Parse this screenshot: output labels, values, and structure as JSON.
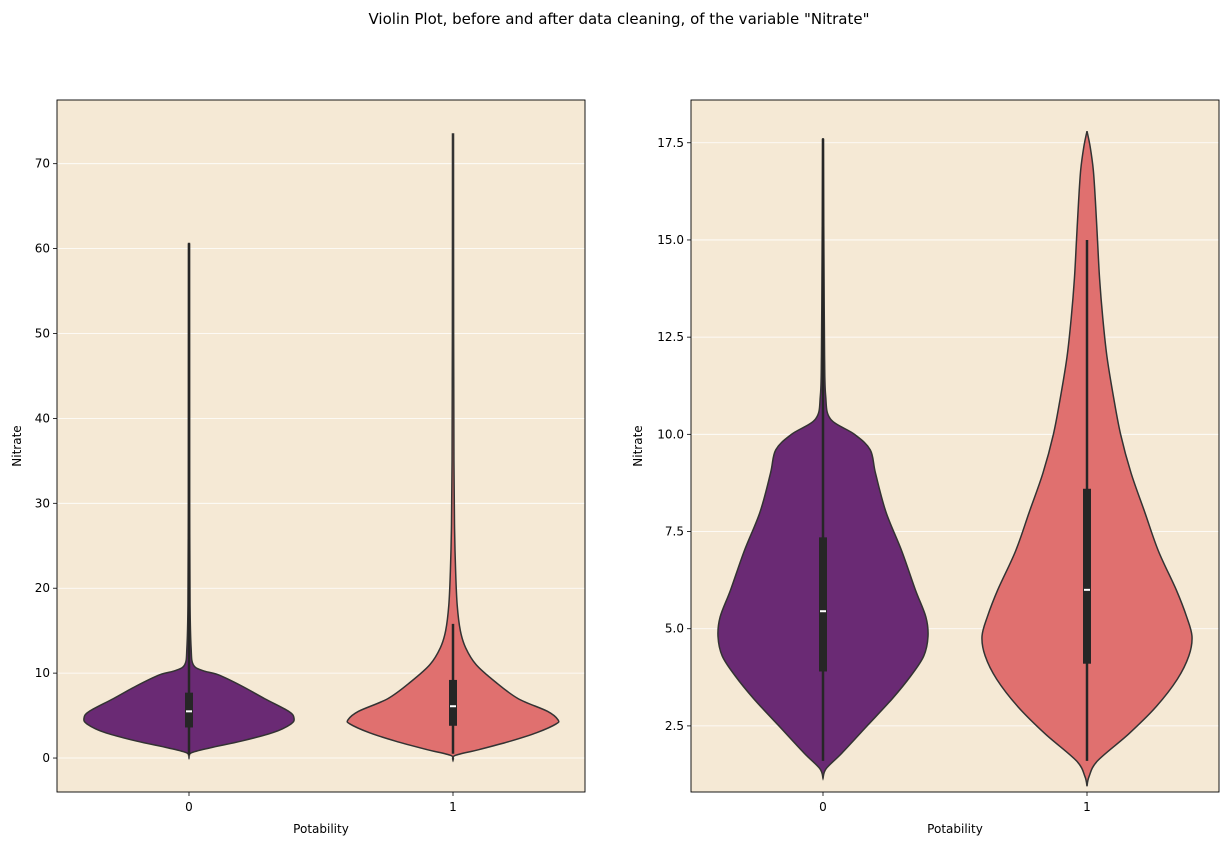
{
  "figure": {
    "suptitle": "Violin Plot, before and after data cleaning, of the variable \"Nitrate\"",
    "panel_background": "#f5e9d5",
    "grid_color": "#ffffff",
    "violin_outline": "#333333",
    "box_color": "#262626",
    "median_color": "#ffffff",
    "palette": [
      "#6a2a74",
      "#e0706f"
    ]
  },
  "chart_data": [
    {
      "type": "violin",
      "xlabel": "Potability",
      "ylabel": "Nitrate",
      "categories": [
        "0",
        "1"
      ],
      "ylim": [
        -4,
        77.5
      ],
      "yticks": [
        0,
        10,
        20,
        30,
        40,
        50,
        60,
        70
      ],
      "ytick_labels": [
        "0",
        "10",
        "20",
        "30",
        "40",
        "50",
        "60",
        "70"
      ],
      "grid": "horizontal",
      "violins": [
        {
          "category": "0",
          "color": "#6a2a74",
          "whisker_min": 0.3,
          "q1": 3.6,
          "median": 5.5,
          "q3": 7.7,
          "whisker_max": 60.6,
          "profile": [
            [
              0,
              0
            ],
            [
              0.6,
              0.02
            ],
            [
              1.2,
              0.2
            ],
            [
              2,
              0.5
            ],
            [
              3,
              0.8
            ],
            [
              4,
              0.97
            ],
            [
              4.7,
              1
            ],
            [
              5.5,
              0.95
            ],
            [
              7,
              0.72
            ],
            [
              8.5,
              0.5
            ],
            [
              9.8,
              0.28
            ],
            [
              10.3,
              0.13
            ],
            [
              11,
              0.04
            ],
            [
              13,
              0.02
            ],
            [
              18,
              0.01
            ],
            [
              30,
              0.006
            ],
            [
              45,
              0.005
            ],
            [
              60.6,
              0.004
            ]
          ]
        },
        {
          "category": "1",
          "color": "#e0706f",
          "whisker_min": 0.5,
          "q1": 3.8,
          "median": 6.1,
          "q3": 9.2,
          "whisker_max": 15.8,
          "profile": [
            [
              -0.3,
              0
            ],
            [
              0.3,
              0.02
            ],
            [
              1,
              0.25
            ],
            [
              2,
              0.55
            ],
            [
              3,
              0.8
            ],
            [
              4,
              0.98
            ],
            [
              4.5,
              1
            ],
            [
              5.5,
              0.9
            ],
            [
              7,
              0.62
            ],
            [
              9,
              0.4
            ],
            [
              11,
              0.22
            ],
            [
              13,
              0.12
            ],
            [
              15,
              0.07
            ],
            [
              18,
              0.04
            ],
            [
              22,
              0.025
            ],
            [
              27,
              0.015
            ],
            [
              35,
              0.009
            ],
            [
              50,
              0.006
            ],
            [
              73.5,
              0.005
            ]
          ]
        }
      ]
    },
    {
      "type": "violin",
      "xlabel": "Potability",
      "ylabel": "Nitrate",
      "categories": [
        "0",
        "1"
      ],
      "ylim": [
        0.8,
        18.6
      ],
      "yticks": [
        2.5,
        5.0,
        7.5,
        10.0,
        12.5,
        15.0,
        17.5
      ],
      "ytick_labels": [
        "2.5",
        "5.0",
        "7.5",
        "10.0",
        "12.5",
        "15.0",
        "17.5"
      ],
      "grid": "horizontal",
      "violins": [
        {
          "category": "0",
          "color": "#6a2a74",
          "whisker_min": 1.6,
          "q1": 3.9,
          "median": 5.45,
          "q3": 7.35,
          "whisker_max": 17.6,
          "profile": [
            [
              1.15,
              0
            ],
            [
              1.4,
              0.03
            ],
            [
              1.8,
              0.18
            ],
            [
              2.5,
              0.42
            ],
            [
              3.2,
              0.66
            ],
            [
              3.8,
              0.84
            ],
            [
              4.3,
              0.96
            ],
            [
              4.8,
              1
            ],
            [
              5.3,
              0.98
            ],
            [
              6,
              0.88
            ],
            [
              7,
              0.75
            ],
            [
              8,
              0.6
            ],
            [
              9,
              0.5
            ],
            [
              9.6,
              0.45
            ],
            [
              10,
              0.3
            ],
            [
              10.4,
              0.07
            ],
            [
              11,
              0.025
            ],
            [
              12,
              0.015
            ],
            [
              14,
              0.01
            ],
            [
              16,
              0.006
            ],
            [
              17.6,
              0.003
            ]
          ]
        },
        {
          "category": "1",
          "color": "#e0706f",
          "whisker_min": 1.6,
          "q1": 4.1,
          "median": 6.0,
          "q3": 8.6,
          "whisker_max": 15.0,
          "profile": [
            [
              0.95,
              0
            ],
            [
              1.2,
              0.02
            ],
            [
              1.6,
              0.1
            ],
            [
              2.3,
              0.4
            ],
            [
              3,
              0.66
            ],
            [
              3.7,
              0.86
            ],
            [
              4.3,
              0.97
            ],
            [
              4.8,
              1
            ],
            [
              5.3,
              0.95
            ],
            [
              6,
              0.85
            ],
            [
              7,
              0.68
            ],
            [
              8,
              0.55
            ],
            [
              9,
              0.42
            ],
            [
              10,
              0.32
            ],
            [
              11,
              0.25
            ],
            [
              12,
              0.19
            ],
            [
              13,
              0.15
            ],
            [
              14,
              0.12
            ],
            [
              15,
              0.1
            ],
            [
              16,
              0.08
            ],
            [
              16.8,
              0.06
            ],
            [
              17.4,
              0.03
            ],
            [
              17.8,
              0
            ]
          ]
        }
      ]
    }
  ]
}
